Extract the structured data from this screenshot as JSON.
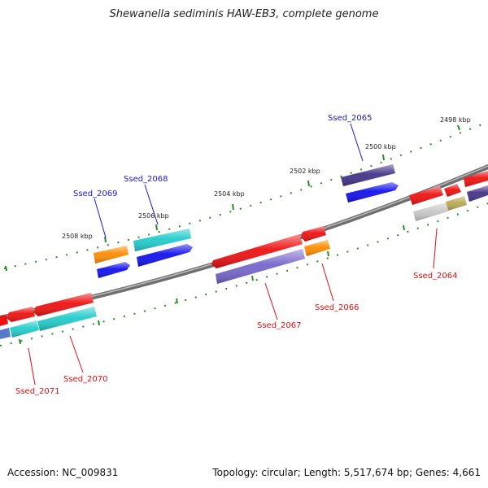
{
  "title": "Shewanella sediminis HAW-EB3, complete genome",
  "footer": {
    "accession": "Accession: NC_009831",
    "summary": "Topology: circular; Length: 5,517,674 bp; Genes: 4,661"
  },
  "ticks": [
    {
      "label": "2498 kbp"
    },
    {
      "label": "2500 kbp"
    },
    {
      "label": "2502 kbp"
    },
    {
      "label": "2504 kbp"
    },
    {
      "label": "2506 kbp"
    },
    {
      "label": "2508 kbp"
    }
  ],
  "gene_labels": [
    {
      "text": "Ssed_2065",
      "strand": "plus"
    },
    {
      "text": "Ssed_2068",
      "strand": "plus"
    },
    {
      "text": "Ssed_2069",
      "strand": "plus"
    },
    {
      "text": "Ssed_2064",
      "strand": "minus"
    },
    {
      "text": "Ssed_2066",
      "strand": "minus"
    },
    {
      "text": "Ssed_2067",
      "strand": "minus"
    },
    {
      "text": "Ssed_2070",
      "strand": "minus"
    },
    {
      "text": "Ssed_2071",
      "strand": "minus"
    }
  ],
  "colors": {
    "plus_label": "#1a1acc",
    "minus_label": "#dd1111",
    "backbone": "#7a7a7a",
    "tick": "#2a8a2a",
    "cds_red": "#ee1111",
    "cds_orange": "#ff8c00",
    "cds_blue": "#1111ee",
    "cds_cyan": "#22cccc",
    "cds_violet": "#7766cc",
    "cds_navy": "#443388",
    "cds_gray": "#c8c8c8",
    "cds_olive": "#b8aa55"
  }
}
